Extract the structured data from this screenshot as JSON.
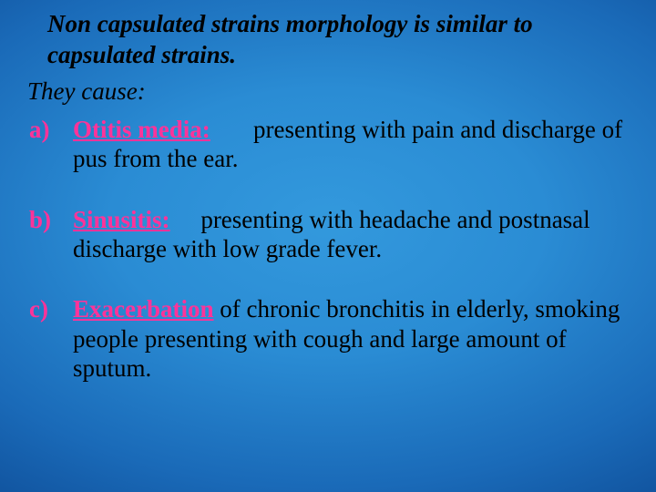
{
  "colors": {
    "accent": "#ff3399",
    "text": "#000000",
    "bg_center": "#3399dd",
    "bg_edge": "#083a7a"
  },
  "typography": {
    "font_family": "Times New Roman, serif",
    "heading_fontsize": 27,
    "body_fontsize": 27,
    "heading_weight": "bold",
    "heading_style": "italic"
  },
  "heading": "Non capsulated strains morphology is similar to capsulated strains.",
  "subheading": "They cause:",
  "items": [
    {
      "marker": "a)",
      "term": "Otitis media:",
      "gap": "       ",
      "desc": "presenting with pain and discharge of pus from the ear."
    },
    {
      "marker": "b)",
      "term": "Sinusitis:",
      "gap": "     ",
      "desc": "presenting with headache and postnasal discharge with low grade fever."
    },
    {
      "marker": "c)",
      "term": "Exacerbation",
      "gap": " ",
      "desc": "of chronic bronchitis in elderly, smoking people presenting with cough and large amount of sputum."
    }
  ]
}
